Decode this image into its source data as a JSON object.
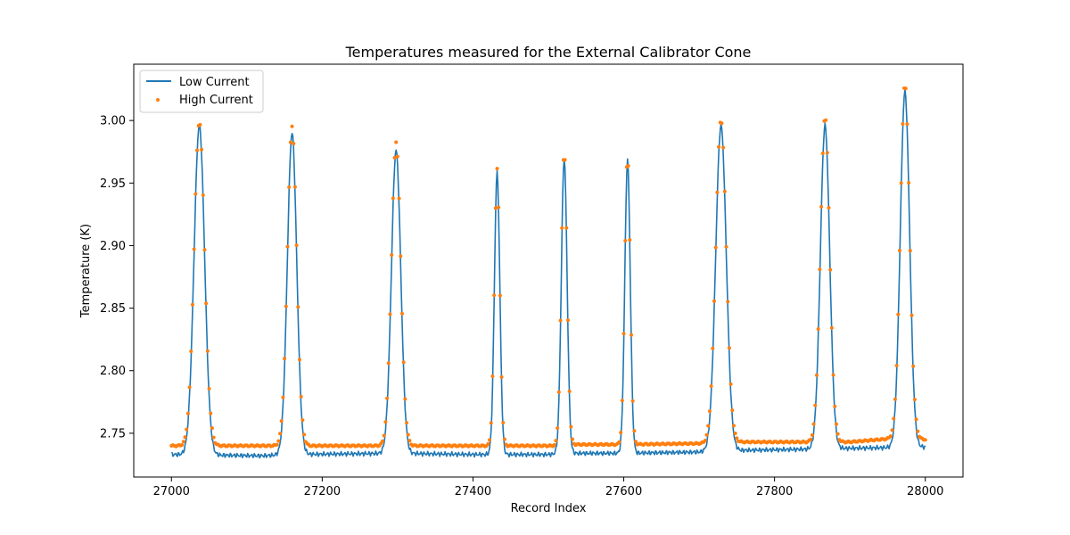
{
  "chart_data": {
    "type": "line",
    "title": "Temperatures measured for the External Calibrator Cone",
    "xlabel": "Record Index",
    "ylabel": "Temperature (K)",
    "xlim": [
      26950,
      28050
    ],
    "ylim": [
      2.715,
      3.045
    ],
    "xticks": [
      27000,
      27200,
      27400,
      27600,
      27800,
      28000
    ],
    "yticks": [
      2.75,
      2.8,
      2.85,
      2.9,
      2.95,
      3.0
    ],
    "ytick_labels": [
      "2.75",
      "2.80",
      "2.85",
      "2.90",
      "2.95",
      "3.00"
    ],
    "grid": false,
    "legend_position": "upper-left",
    "colors": {
      "low": "#1f77b4",
      "high": "#ff7f0e"
    },
    "series": [
      {
        "name": "Low Current",
        "style": "line",
        "baseline": [
          [
            27000,
            2.733
          ],
          [
            27120,
            2.732
          ],
          [
            27160,
            2.733
          ],
          [
            27300,
            2.734
          ],
          [
            27400,
            2.733
          ],
          [
            27500,
            2.733
          ],
          [
            27520,
            2.734
          ],
          [
            27600,
            2.734
          ],
          [
            27700,
            2.735
          ],
          [
            27720,
            2.736
          ],
          [
            27820,
            2.737
          ],
          [
            27900,
            2.738
          ],
          [
            28000,
            2.739
          ]
        ],
        "peaks": [
          {
            "center": 27037,
            "height": 2.996,
            "width": 7.0
          },
          {
            "center": 27160,
            "height": 2.99,
            "width": 6.2
          },
          {
            "center": 27298,
            "height": 2.976,
            "width": 6.2
          },
          {
            "center": 27432,
            "height": 2.958,
            "width": 3.6
          },
          {
            "center": 27521,
            "height": 2.97,
            "width": 3.8
          },
          {
            "center": 27605,
            "height": 2.968,
            "width": 3.6
          },
          {
            "center": 27729,
            "height": 2.996,
            "width": 7.0
          },
          {
            "center": 27867,
            "height": 2.996,
            "width": 6.2
          },
          {
            "center": 27973,
            "height": 3.023,
            "width": 6.2
          }
        ]
      },
      {
        "name": "High Current",
        "style": "scatter",
        "baseline": [
          [
            27000,
            2.74
          ],
          [
            27520,
            2.74
          ],
          [
            27530,
            2.741
          ],
          [
            27600,
            2.741
          ],
          [
            27720,
            2.742
          ],
          [
            27750,
            2.743
          ],
          [
            27900,
            2.743
          ],
          [
            27960,
            2.746
          ],
          [
            28000,
            2.745
          ]
        ],
        "peaks": [
          {
            "center": 27037,
            "height": 2.999,
            "width": 7.0
          },
          {
            "center": 27160,
            "height": 2.995,
            "width": 6.2
          },
          {
            "center": 27298,
            "height": 2.983,
            "width": 6.2
          },
          {
            "center": 27432,
            "height": 2.962,
            "width": 3.6
          },
          {
            "center": 27521,
            "height": 2.977,
            "width": 3.8
          },
          {
            "center": 27605,
            "height": 2.972,
            "width": 3.6
          },
          {
            "center": 27729,
            "height": 3.001,
            "width": 7.0
          },
          {
            "center": 27867,
            "height": 3.003,
            "width": 6.2
          },
          {
            "center": 27973,
            "height": 3.029,
            "width": 6.2
          }
        ]
      }
    ]
  }
}
